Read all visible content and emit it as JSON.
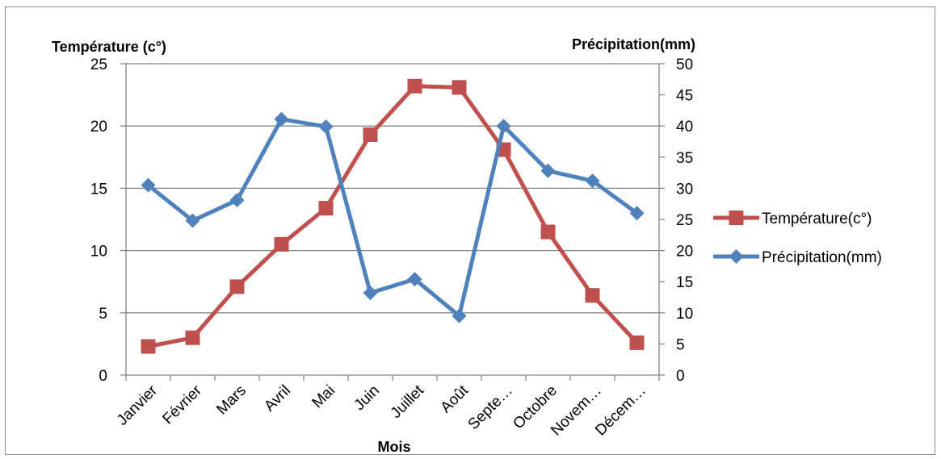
{
  "chart_data": {
    "type": "line",
    "categories": [
      "Janvier",
      "Février",
      "Mars",
      "Avril",
      "Mai",
      "Juin",
      "Juillet",
      "Août",
      "Septe…",
      "Octobre",
      "Novem…",
      "Décem…"
    ],
    "series": [
      {
        "name": "Température(c°)",
        "axis": "left",
        "color": "#c0504d",
        "marker": "square",
        "values": [
          2.3,
          3.0,
          7.1,
          10.5,
          13.4,
          19.3,
          23.2,
          23.1,
          18.1,
          11.5,
          6.4,
          2.6
        ]
      },
      {
        "name": "Précipitation(mm)",
        "axis": "right",
        "color": "#4f81bd",
        "marker": "diamond",
        "values": [
          30.5,
          24.8,
          28.1,
          41.1,
          39.9,
          13.2,
          15.4,
          9.5,
          40.0,
          32.8,
          31.2,
          26.0
        ]
      }
    ],
    "ylabel_left": "Température (c°)",
    "ylabel_right": "Précipitation(mm)",
    "xlabel": "Mois",
    "ylim_left": [
      0,
      25
    ],
    "ylim_right": [
      0,
      50
    ],
    "yticks_left": [
      "0",
      "5",
      "10",
      "15",
      "20",
      "25"
    ],
    "yticks_right": [
      "0",
      "5",
      "10",
      "15",
      "20",
      "25",
      "30",
      "35",
      "40",
      "45",
      "50"
    ],
    "grid": true,
    "legend_position": "right"
  }
}
